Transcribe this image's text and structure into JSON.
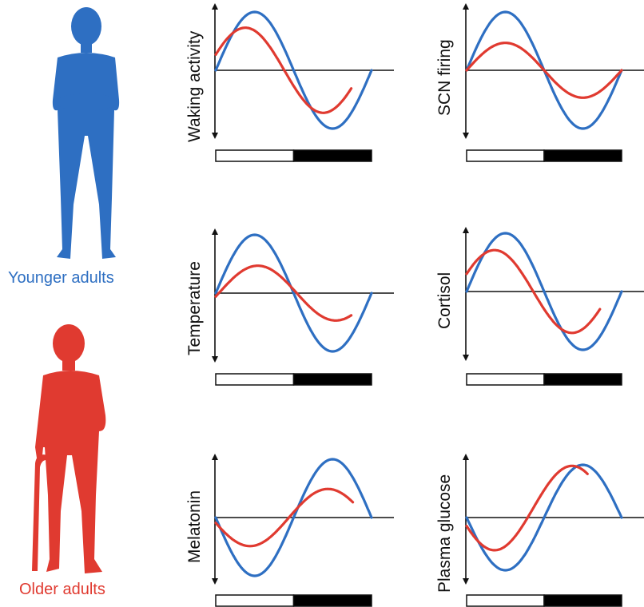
{
  "groups": {
    "younger": {
      "label": "Younger adults",
      "color": "#2e6fc2"
    },
    "older": {
      "label": "Older adults",
      "color": "#e03a30"
    }
  },
  "colors": {
    "axis": "#111111",
    "light_bar": "#ffffff",
    "dark_bar": "#000000"
  },
  "icons": [
    "younger-adult-silhouette-icon",
    "older-adult-with-cane-silhouette-icon"
  ],
  "chart_data": [
    {
      "type": "line",
      "ylabel": "Waking activity",
      "series": [
        {
          "group": "younger",
          "amplitude": 1.0,
          "phase": 0.0,
          "x_end": 1.0,
          "offset": 0.0
        },
        {
          "group": "older",
          "amplitude": 0.73,
          "phase": -0.06,
          "x_end": 0.87,
          "offset": 0.0
        }
      ]
    },
    {
      "type": "line",
      "ylabel": "SCN firing",
      "series": [
        {
          "group": "younger",
          "amplitude": 1.0,
          "phase": 0.0,
          "x_end": 1.0,
          "offset": 0.0
        },
        {
          "group": "older",
          "amplitude": 0.47,
          "phase": 0.0,
          "x_end": 1.0,
          "offset": 0.0
        }
      ]
    },
    {
      "type": "line",
      "ylabel": "Temperature",
      "series": [
        {
          "group": "younger",
          "amplitude": 1.0,
          "phase": 0.0,
          "x_end": 1.0,
          "offset": 0.0
        },
        {
          "group": "older",
          "amplitude": 0.47,
          "phase": 0.02,
          "x_end": 0.87,
          "offset": 0.0
        }
      ]
    },
    {
      "type": "line",
      "ylabel": "Cortisol",
      "series": [
        {
          "group": "younger",
          "amplitude": 1.0,
          "phase": 0.0,
          "x_end": 1.0,
          "offset": 0.0
        },
        {
          "group": "older",
          "amplitude": 0.71,
          "phase": -0.07,
          "x_end": 0.86,
          "offset": 0.0
        }
      ]
    },
    {
      "type": "line",
      "ylabel": "Melatonin",
      "series": [
        {
          "group": "younger",
          "amplitude": -1.0,
          "phase": 0.0,
          "x_end": 1.0,
          "offset": 0.0
        },
        {
          "group": "older",
          "amplitude": -0.49,
          "phase": -0.03,
          "x_end": 0.88,
          "offset": 0.0
        }
      ]
    },
    {
      "type": "line",
      "ylabel": "Plasma glucose",
      "series": [
        {
          "group": "younger",
          "amplitude": -1.0,
          "phase": 0.0,
          "x_end": 1.0,
          "offset": 0.0
        },
        {
          "group": "older",
          "amplitude": -0.8,
          "phase": -0.07,
          "x_end": 0.78,
          "offset": 0.18
        }
      ]
    }
  ]
}
